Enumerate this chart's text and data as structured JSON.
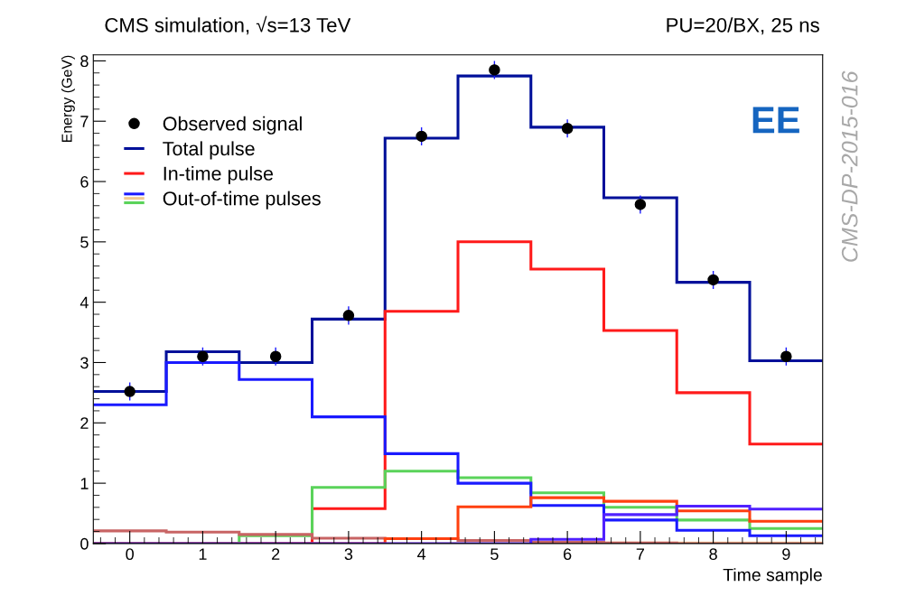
{
  "chart_data": {
    "type": "histogram",
    "title": "CMS simulation, √s=13 TeV",
    "subtitle": "PU=20/BX, 25 ns",
    "xlabel": "Time sample",
    "ylabel": "Energy (GeV)",
    "bins": [
      -0.5,
      0.5,
      1.5,
      2.5,
      3.5,
      4.5,
      5.5,
      6.5,
      7.5,
      8.5,
      9.5
    ],
    "xlim": [
      -0.5,
      9.5
    ],
    "ylim": [
      0,
      8.1
    ],
    "xticks": [
      0,
      1,
      2,
      3,
      4,
      5,
      6,
      7,
      8,
      9
    ],
    "yticks": [
      0,
      1,
      2,
      3,
      4,
      5,
      6,
      7,
      8
    ],
    "legend": "top left",
    "grid": false,
    "annotations": [
      "EE",
      "CMS-DP-2015-016"
    ],
    "series": [
      {
        "name": "Observed signal",
        "type": "scatter",
        "marker": "circle",
        "color": "#000000",
        "x": [
          0,
          1,
          2,
          3,
          4,
          5,
          6,
          7,
          8,
          9
        ],
        "values": [
          2.52,
          3.1,
          3.1,
          3.78,
          6.75,
          7.85,
          6.88,
          5.62,
          4.37,
          3.1
        ],
        "errors": [
          0.15,
          0.15,
          0.15,
          0.15,
          0.15,
          0.15,
          0.15,
          0.15,
          0.15,
          0.15
        ]
      },
      {
        "name": "Total pulse",
        "color": "#00109a",
        "values": [
          2.52,
          3.18,
          3.0,
          3.72,
          6.72,
          7.75,
          6.9,
          5.73,
          4.33,
          3.03
        ]
      },
      {
        "name": "In-time pulse",
        "color": "#ff1a1a",
        "values": [
          0,
          0,
          0,
          0.58,
          3.85,
          5.0,
          4.55,
          3.53,
          2.5,
          1.65
        ]
      },
      {
        "name": "Out-of-time pulses",
        "color": "#5ad35a",
        "values": [
          0,
          0,
          0.13,
          0.93,
          1.2,
          1.09,
          0.84,
          0.6,
          0.39,
          0.25
        ]
      },
      {
        "color": "#f0c890",
        "values": [
          0,
          0,
          0,
          0,
          0,
          0,
          0.01,
          0.01,
          0.01,
          0.01
        ]
      },
      {
        "color": "#1a1aff",
        "values": [
          2.3,
          3.0,
          2.72,
          2.1,
          1.49,
          1.0,
          0.63,
          0.39,
          0.22,
          0.13
        ]
      },
      {
        "color": "#c86464",
        "values": [
          0.21,
          0.19,
          0.15,
          0.09,
          0.08,
          0.05,
          0.02,
          0.01,
          0,
          0
        ]
      },
      {
        "color": "#ff4010",
        "values": [
          0,
          0,
          0,
          0,
          0.08,
          0.61,
          0.76,
          0.7,
          0.54,
          0.37
        ]
      },
      {
        "color": "#5020ff",
        "values": [
          0,
          0,
          0,
          0,
          0,
          0,
          0.07,
          0.48,
          0.62,
          0.57
        ]
      }
    ]
  }
}
